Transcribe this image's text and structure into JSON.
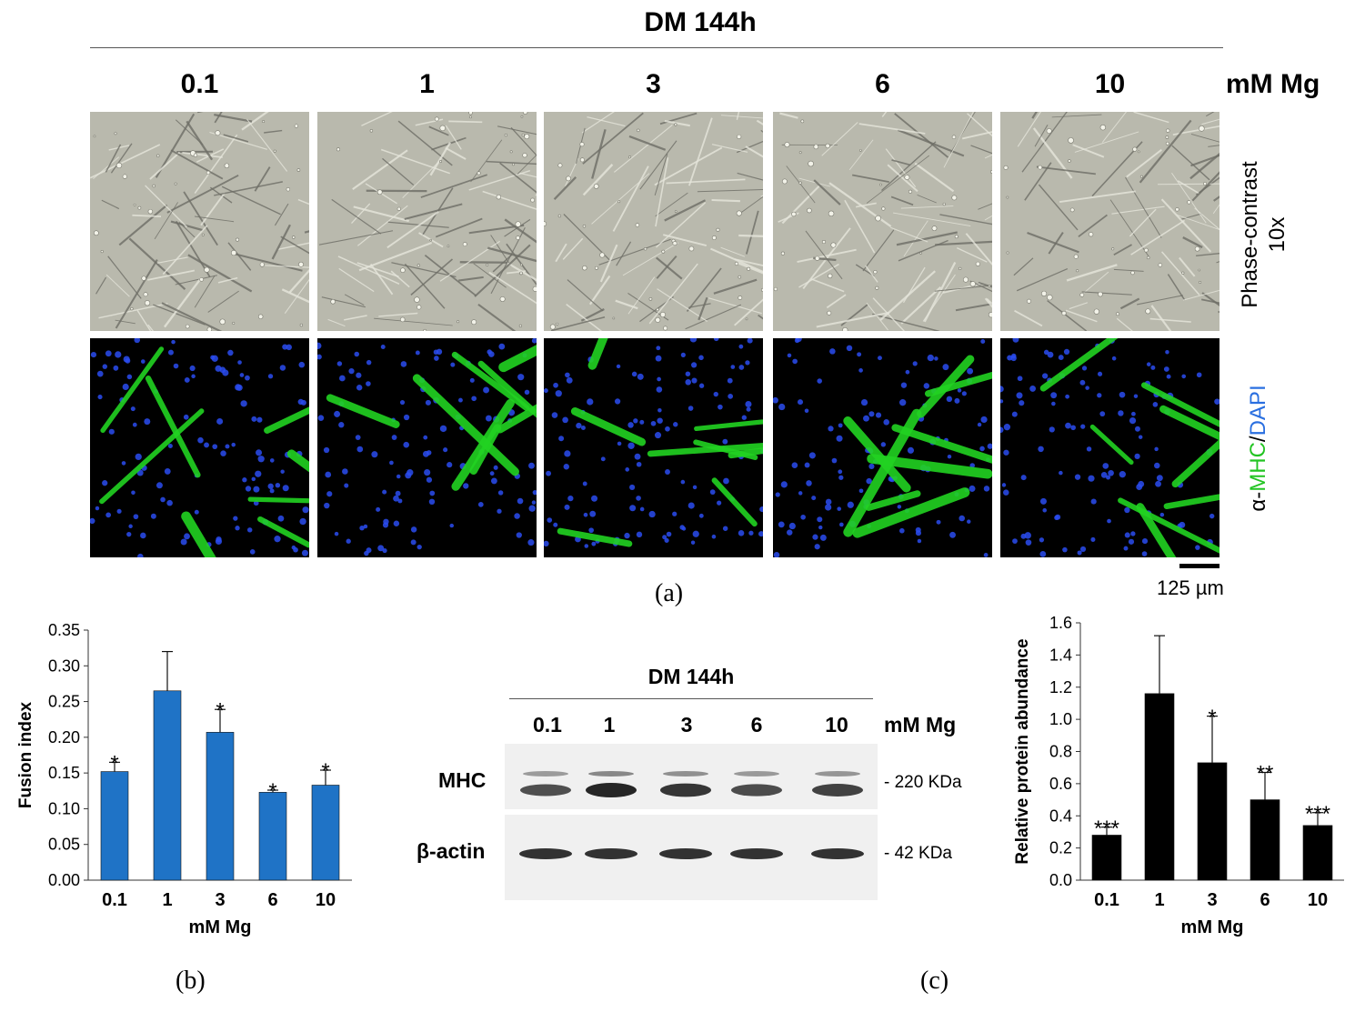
{
  "panel_a": {
    "title": "DM 144h",
    "concentrations": [
      "0.1",
      "1",
      "3",
      "6",
      "10"
    ],
    "unit_label": "mM Mg",
    "row_label_phase": {
      "line1": "Phase-contrast",
      "line2": "10x"
    },
    "row_label_fluor": {
      "part1": "α-",
      "mhc": "MHC",
      "slash": "/",
      "dapi": "DAPI"
    },
    "scale_bar_label": "125 µm",
    "panel_letter": "(a)",
    "colors": {
      "mhc": "#22d322",
      "dapi": "#2a4cf0",
      "phase_bg": "#b9b9ad",
      "fluor_bg": "#000000"
    }
  },
  "panel_b": {
    "panel_letter": "(b)",
    "chart_data": {
      "type": "bar",
      "categories": [
        "0.1",
        "1",
        "3",
        "6",
        "10"
      ],
      "values": [
        0.152,
        0.265,
        0.207,
        0.123,
        0.133
      ],
      "errors": [
        0.013,
        0.055,
        0.032,
        0.003,
        0.021
      ],
      "significance": [
        "*",
        "",
        "*",
        "*",
        "*"
      ],
      "xlabel": "mM Mg",
      "ylabel": "Fusion index",
      "ylim": [
        0,
        0.35
      ],
      "yticks": [
        "0.00",
        "0.05",
        "0.10",
        "0.15",
        "0.20",
        "0.25",
        "0.30",
        "0.35"
      ],
      "color": "#1f73c6",
      "grid": false
    }
  },
  "panel_c": {
    "panel_letter": "(c)",
    "blot": {
      "title": "DM 144h",
      "lanes": [
        "0.1",
        "1",
        "3",
        "6",
        "10"
      ],
      "unit_label": "mM Mg",
      "rows": [
        {
          "label": "MHC",
          "marker": "- 220 KDa"
        },
        {
          "label": "β-actin",
          "marker": "- 42 KDa"
        }
      ]
    },
    "chart_data": {
      "type": "bar",
      "categories": [
        "0.1",
        "1",
        "3",
        "6",
        "10"
      ],
      "values": [
        0.28,
        1.16,
        0.73,
        0.5,
        0.34
      ],
      "errors": [
        0.05,
        0.36,
        0.29,
        0.17,
        0.08
      ],
      "significance": [
        "***",
        "",
        "*",
        "**",
        "***"
      ],
      "xlabel": "mM Mg",
      "ylabel": "Relative protein abundance",
      "ylim": [
        0,
        1.6
      ],
      "yticks": [
        "0.0",
        "0.2",
        "0.4",
        "0.6",
        "0.8",
        "1.0",
        "1.2",
        "1.4",
        "1.6"
      ],
      "color": "#000000",
      "grid": false
    }
  }
}
